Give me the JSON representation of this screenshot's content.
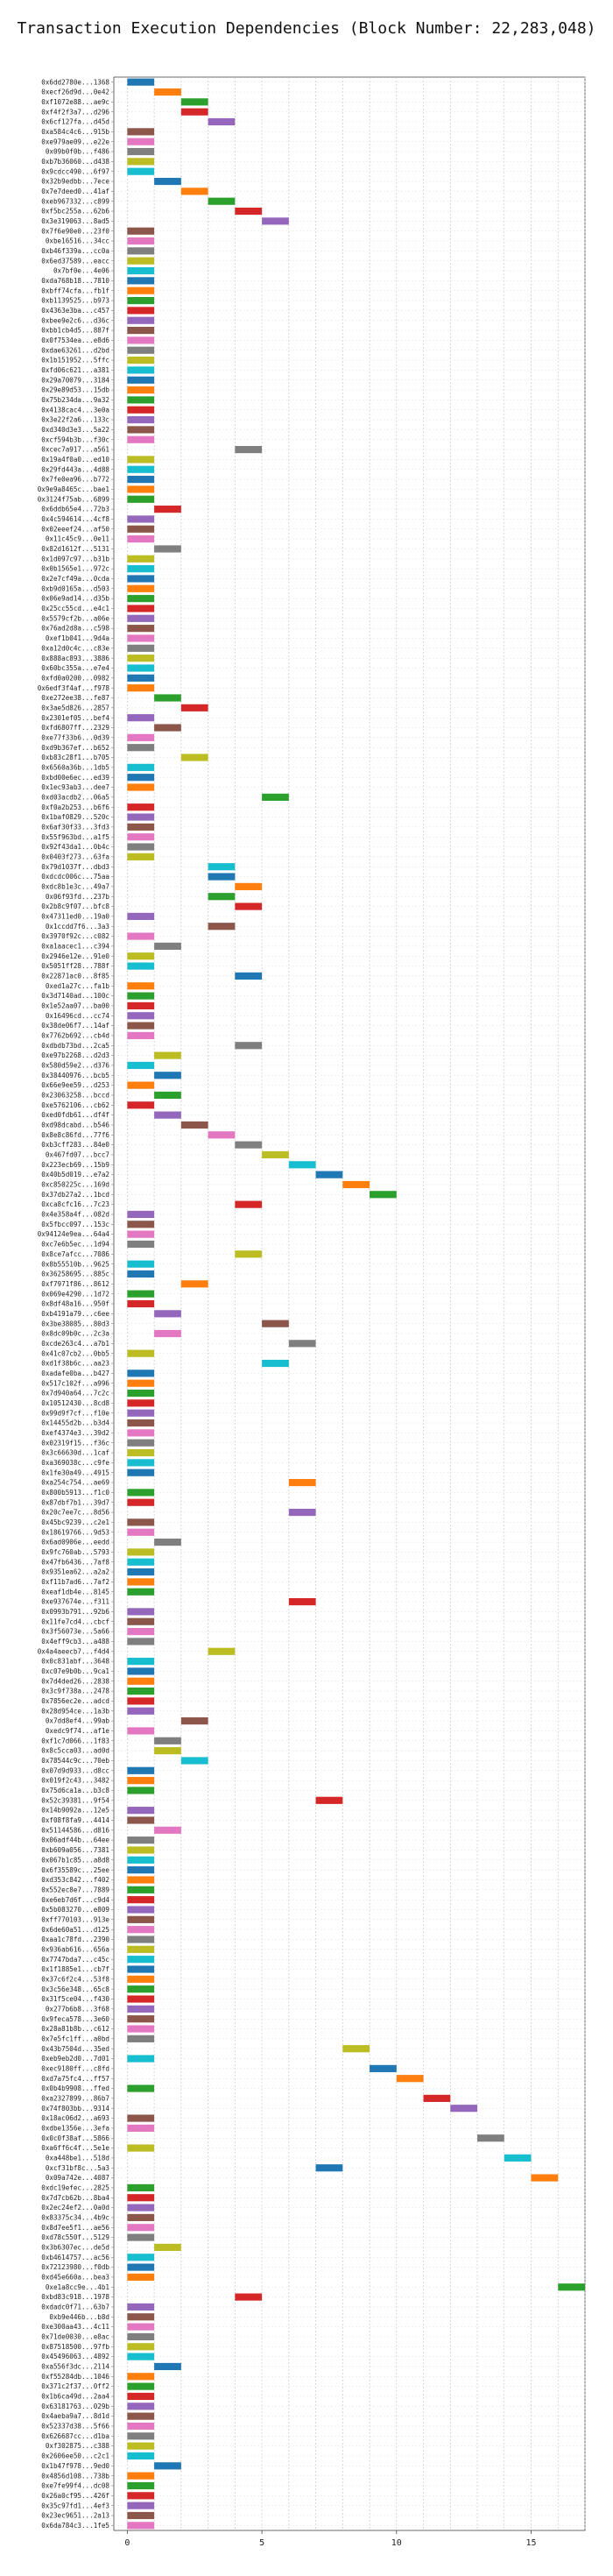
{
  "chart_data": {
    "type": "bar",
    "orientation": "horizontal",
    "title": "Transaction Execution Dependencies (Block Number: 22,283,048)",
    "xlabel": "",
    "ylabel": "",
    "xlim": [
      -0.5,
      17
    ],
    "xticks": [
      0,
      5,
      10,
      15
    ],
    "grid": true,
    "palette": [
      "#1f77b4",
      "#ff7f0e",
      "#2ca02c",
      "#d62728",
      "#9467bd",
      "#8c564b",
      "#e377c2",
      "#7f7f7f",
      "#bcbd22",
      "#17becf"
    ],
    "bar_width": 1,
    "categories": [
      "0x6dd2780e...1368",
      "0xecf26d9d...0e42",
      "0xf1072e88...ae9c",
      "0xf4f2f3a7...d296",
      "0x6cf127fa...d45d",
      "0xa584c4c6...915b",
      "0xe979ae09...e22e",
      "0x09b0f0b...f486",
      "0xb7b36060...d438",
      "0x9cdcc490...6f97",
      "0x32b9edbb...7ece",
      "0x7e7deed0...41af",
      "0xeb967332...c899",
      "0xf5bc255a...62b6",
      "0x3e319063...8ad5",
      "0x7f6e90e0...23f0",
      "0xbe16516...34cc",
      "0xb46f339a...cc0a",
      "0x6ed37589...eacc",
      "0x7bf0e...4e06",
      "0xda768b18...7810",
      "0xbff74cfa...fb1f",
      "0xb1139525...b973",
      "0x4363e3ba...c457",
      "0xbee9e2c6...d36c",
      "0xbb1cb4d5...887f",
      "0x0f7534ea...e8d6",
      "0xdae63261...d2bd",
      "0x1b151952...5ffc",
      "0xfd06c621...a381",
      "0x29a70079...3184",
      "0x29e89d53...15db",
      "0x75b234da...9a32",
      "0x4138cac4...3e0a",
      "0x3e22f2a6...133c",
      "0xd340d3e3...5a22",
      "0xcf594b3b...f30c",
      "0xcec7a917...a561",
      "0x19a4f0a0...ed10",
      "0x29fd443a...4d88",
      "0x7fe0ea96...b772",
      "0x9e9a8465c...bae1",
      "0x3124f75ab...6899",
      "0x6ddb65e4...72b3",
      "0x4c594614...4cf8",
      "0x02eeef24...af50",
      "0x11c45c9...0e11",
      "0x82d1612f...5131",
      "0x1d097c97...b31b",
      "0x0b1565e1...972c",
      "0x2e7cf49a...0cda",
      "0xb9d0165a...d503",
      "0x06e9ad14...d35b",
      "0x25cc55cd...e4c1",
      "0x5579cf2b...a06e",
      "0x76ad2d8a...c598",
      "0xef1b041...9d4a",
      "0xa12d0c4c...c83e",
      "0x888ac893...3886",
      "0x60bc355a...e7e4",
      "0xfd0a0200...0982",
      "0x6edf3f4af...f978",
      "0xe272ee38...fe87",
      "0x3ae5d826...2857",
      "0x2301ef05...bef4",
      "0xfd6807ff...2329",
      "0xe77f33b6...0d39",
      "0xd9b367ef...b652",
      "0xb83c28f1...b705",
      "0x6560a36b...1db5",
      "0xbd00e6ec...ed39",
      "0x1ec93ab3...dee7",
      "0xd03acdb2...06a5",
      "0xf0a2b253...b6f6",
      "0x1baf0829...520c",
      "0x6af30f33...3fd3",
      "0x55f963bd...a1f5",
      "0x92f43da1...0b4c",
      "0x0403f273...63fa",
      "0x79d1037f...dbd3",
      "0xdcdc006c...75aa",
      "0xdc8b1e3c...49a7",
      "0x06f93fd...237b",
      "0x2b8c9f07...bfc8",
      "0x47311ed0...19a0",
      "0x1ccdd7f6...3a3",
      "0x3970f92c...c082",
      "0xa1aacec1...c394",
      "0x2946e12e...91e0",
      "0x5051ff28...788f",
      "0x22871ac0...8f85",
      "0xed1a27c...fa1b",
      "0x3d7140ad...100c",
      "0x1e52aa07...ba00",
      "0x16496cd...cc74",
      "0x38de06f7...14af",
      "0x7762b692...cb4d",
      "0xdbdb73bd...2ca5",
      "0xe97b2268...d2d3",
      "0x580d59e2...d376",
      "0x38440976...bcb5",
      "0x66e9ee59...d253",
      "0x23063258...bccd",
      "0xe5762106...cb62",
      "0xed0fdb61...df4f",
      "0xd98dcabd...b546",
      "0x8e8c86fd...77f6",
      "0xb3cff283...84e0",
      "0x467fd07...bcc7",
      "0x223ecb69...15b9",
      "0x40b5d019...e7a2",
      "0xc850225c...169d",
      "0x37db27a2...1bcd",
      "0xca8cfc16...7c23",
      "0x4e358a4f...082d",
      "0x5fbcc097...153c",
      "0x94124e9ea...64a4",
      "0xc7e6b5ec...1d94",
      "0x8ce7afcc...7086",
      "0x8b55510b...9625",
      "0x36258695...885c",
      "0xf7971f86...8612",
      "0x069e4290...1d72",
      "0x8df48a16...950f",
      "0xb4191a79...c6ee",
      "0x3be38085...80d3",
      "0x8dc09b0c...2c3a",
      "0xcde263c4...a7b1",
      "0x41c07cb2...0bb5",
      "0xd1f38b6c...aa23",
      "0xadafe0ba...b427",
      "0x517c102f...a996",
      "0x7d940a64...7c2c",
      "0x10512430...8cd8",
      "0x99d9f7cf...f10e",
      "0x14455d2b...b3d4",
      "0xef4374e3...39d2",
      "0x02319f15...f36c",
      "0x3c66630d...1caf",
      "0xa369038c...c9fe",
      "0x1fe30a49...4915",
      "0xa254c754...ae69",
      "0x800b5913...f1c0",
      "0x87dbf7b1...39d7",
      "0x20c7ee7c...8d56",
      "0x45bc9239...c2e1",
      "0x18619766...9d53",
      "0x6ad0906e...eedd",
      "0x9fc760ab...5793",
      "0x47fb6436...7af8",
      "0x9351ea62...a2a2",
      "0xf11b7ad6...7af2",
      "0xeaf1db4e...8145",
      "0xe937674e...f311",
      "0x0993b791...92b6",
      "0x11fe7cd4...cbcf",
      "0x3f56073e...5a66",
      "0x4eff9cb3...a488",
      "0x4a4aeecb7...f4d4",
      "0x0c831abf...3648",
      "0xc07e9b0b...9ca1",
      "0x7d4ded26...2838",
      "0x3c9f738a...2478",
      "0x7856ec2e...adcd",
      "0x28d954ce...1a3b",
      "0x7dd8ef4...99ab",
      "0xedc9f74...af1e",
      "0xf1c7d066...1f83",
      "0x8c5cca03...ad0d",
      "0x78544c9c...70eb",
      "0x07d9d933...d8cc",
      "0x019f2c43...3482",
      "0x75d6ca1a...b3c8",
      "0x52c39381...9f54",
      "0x14b9092a...12e5",
      "0xf08f8fa9...4414",
      "0x51144586...d816",
      "0x06adf44b...64ee",
      "0xb609a056...7381",
      "0x067b1c85...a8d8",
      "0x6f35589c...25ee",
      "0xd353c842...f402",
      "0x552ec8e7...7889",
      "0xe6eb7d6f...c9d4",
      "0x5b083270...e809",
      "0xff770103...913e",
      "0x6de60a51...d125",
      "0xaa1c78fd...2390",
      "0x936ab616...656a",
      "0x7747bda7...c45c",
      "0x1f1885e1...cb7f",
      "0x37c6f2c4...53f8",
      "0x3c56e348...65c8",
      "0x31f5ce04...f430",
      "0x277b6b8...3f68",
      "0x9feca578...3e60",
      "0x28a81b8b...c612",
      "0x7e5fc1ff...a0bd",
      "0x43b7504d...35ed",
      "0xeb9eb2d0...7d01",
      "0xec9180ff...c8fd",
      "0xd7a75fc4...ff57",
      "0x0b4b9908...ffed",
      "0xa2327899...86b7",
      "0x74f803bb...9314",
      "0x18ac06d2...a693",
      "0xdbe1356e...3efa",
      "0x0c0f38af...5866",
      "0xa6ff6c4f...5e1e",
      "0xa448be1...518d",
      "0xcf31bf8c...5a3",
      "0x09a742e...4087",
      "0xdc19efec...2825",
      "0x7d7cb62b...8ba4",
      "0x2ec24ef2...0a0d",
      "0x83375c34...4b9c",
      "0x8d7ee5f1...ae56",
      "0xd78c550f...5129",
      "0x3b6307ec...de5d",
      "0xb4614757...ac56",
      "0x72123980...f0db",
      "0xd45e660a...bea3",
      "0xe1a8cc9e...4b1",
      "0xbd83c918...1978",
      "0xdadc0f71...63b7",
      "0xb9e446b...b8d",
      "0xe300aa43...4c11",
      "0x71de0030...e8ac",
      "0x87518500...97fb",
      "0x45496063...4892",
      "0xa556f3dc...2114",
      "0xf55284db...1046",
      "0x371c2f37...0ff2",
      "0x1b6ca49d...2aa4",
      "0x63181763...029b",
      "0x4aeba9a7...8d1d",
      "0x52337d38...5f66",
      "0x626687cc...d1ba",
      "0xf302875...c388",
      "0x2606ee50...c2c1",
      "0x1b47f978...9ed0",
      "0x4856d108...738b",
      "0xe7fe99f4...dc08",
      "0x26a0cf95...426f",
      "0x35c97fd1...4ef3",
      "0x23ec9651...2a13",
      "0x6da784c3...1fe5"
    ],
    "starts": [
      0,
      1,
      2,
      2,
      3,
      0,
      0,
      0,
      0,
      0,
      1,
      2,
      3,
      4,
      5,
      0,
      0,
      0,
      0,
      0,
      0,
      0,
      0,
      0,
      0,
      0,
      0,
      0,
      0,
      0,
      0,
      0,
      0,
      0,
      0,
      0,
      0,
      4,
      0,
      0,
      0,
      0,
      0,
      1,
      0,
      0,
      0,
      1,
      0,
      0,
      0,
      0,
      0,
      0,
      0,
      0,
      0,
      0,
      0,
      0,
      0,
      0,
      1,
      2,
      0,
      1,
      0,
      0,
      2,
      0,
      0,
      0,
      5,
      0,
      0,
      0,
      0,
      0,
      0,
      3,
      3,
      4,
      3,
      4,
      0,
      3,
      0,
      1,
      0,
      0,
      4,
      0,
      0,
      0,
      0,
      0,
      0,
      4,
      1,
      0,
      1,
      0,
      1,
      0,
      1,
      2,
      3,
      4,
      5,
      6,
      7,
      8,
      9,
      4,
      0,
      0,
      0,
      0,
      4,
      0,
      0,
      2,
      0,
      0,
      1,
      5,
      1,
      6,
      0,
      5,
      0,
      0,
      0,
      0,
      0,
      0,
      0,
      0,
      0,
      0,
      0,
      6,
      0,
      0,
      6,
      0,
      0,
      1,
      0,
      0,
      0,
      0,
      0,
      6,
      0,
      0,
      0,
      0,
      3,
      0,
      0,
      0,
      0,
      0,
      0,
      2,
      0,
      1,
      1,
      2,
      0,
      0,
      0,
      7,
      0,
      0,
      1,
      0,
      0,
      0,
      0,
      0,
      0,
      0,
      0,
      0,
      0,
      0,
      0,
      0,
      0,
      0,
      0,
      0,
      0,
      0,
      0,
      0,
      8,
      0,
      9,
      10,
      0,
      11,
      12,
      0,
      0,
      13,
      0,
      14,
      7,
      15,
      0,
      0,
      0,
      0,
      0,
      0,
      1,
      0,
      0,
      0,
      16,
      4,
      0,
      0,
      0,
      0,
      0,
      0,
      1,
      0,
      0,
      0,
      0,
      0,
      0,
      0,
      0,
      0,
      1,
      0,
      0,
      0,
      0,
      0,
      0
    ],
    "colors": [
      0,
      1,
      2,
      3,
      4,
      5,
      6,
      7,
      8,
      9,
      0,
      1,
      2,
      3,
      4,
      5,
      6,
      7,
      8,
      9,
      0,
      1,
      2,
      3,
      4,
      5,
      6,
      7,
      8,
      9,
      0,
      1,
      2,
      3,
      4,
      5,
      6,
      7,
      8,
      9,
      0,
      1,
      2,
      3,
      4,
      5,
      6,
      7,
      8,
      9,
      0,
      1,
      2,
      3,
      4,
      5,
      6,
      7,
      8,
      9,
      0,
      1,
      2,
      3,
      4,
      5,
      6,
      7,
      8,
      9,
      0,
      1,
      2,
      3,
      4,
      5,
      6,
      7,
      8,
      9,
      0,
      1,
      2,
      3,
      4,
      5,
      6,
      7,
      8,
      9,
      0,
      1,
      2,
      3,
      4,
      5,
      6,
      7,
      8,
      9,
      0,
      1,
      2,
      3,
      4,
      5,
      6,
      7,
      8,
      9,
      0,
      1,
      2,
      3,
      4,
      5,
      6,
      7,
      8,
      9,
      0,
      1,
      2,
      3,
      4,
      5,
      6,
      7,
      8,
      9,
      0,
      1,
      2,
      3,
      4,
      5,
      6,
      7,
      8,
      9,
      0,
      1,
      2,
      3,
      4,
      5,
      6,
      7,
      8,
      9,
      0,
      1,
      2,
      3,
      4,
      5,
      6,
      7,
      8,
      9,
      0,
      1,
      2,
      3,
      4,
      5,
      6,
      7,
      8,
      9,
      0,
      1,
      2,
      3,
      4,
      5,
      6,
      7,
      8,
      9,
      0,
      1,
      2,
      3,
      4,
      5,
      6,
      7,
      8,
      9,
      0,
      1,
      2,
      3,
      4,
      5,
      6,
      7,
      8,
      9,
      0,
      1,
      2,
      3,
      4,
      5,
      6,
      7,
      8,
      9,
      0,
      1,
      2,
      3,
      4,
      5,
      6,
      7,
      8,
      9,
      0,
      1,
      2,
      3,
      4,
      5,
      6,
      7,
      8,
      9,
      0,
      1,
      2,
      3,
      4,
      5,
      6,
      7,
      8,
      9,
      0,
      1,
      2,
      3,
      4,
      5,
      6
    ]
  }
}
